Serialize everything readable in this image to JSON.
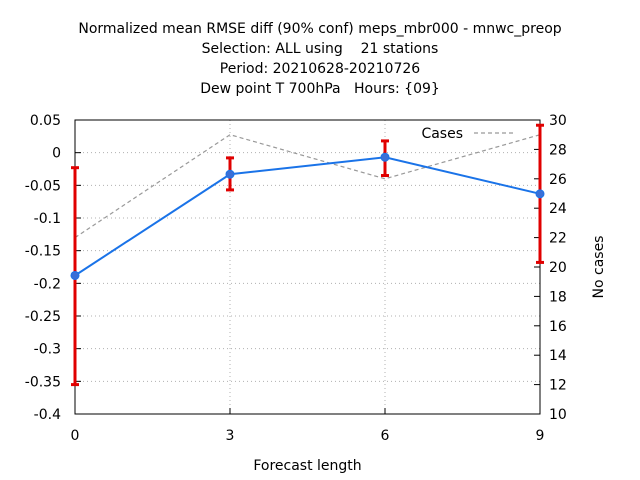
{
  "chart_data": {
    "type": "line",
    "title_lines": [
      "Normalized mean RMSE diff (90% conf) meps_mbr000 - mnwc_preop",
      "Selection: ALL using    21 stations",
      "Period: 20210628-20210726",
      "Dew point T 700hPa   Hours: {09}"
    ],
    "xlabel": "Forecast length",
    "ylabel": "",
    "y2label": "No cases",
    "x": [
      0,
      3,
      6,
      9
    ],
    "xticks": [
      "0",
      "3",
      "6",
      "9"
    ],
    "xlim": [
      0,
      9
    ],
    "ylim": [
      -0.4,
      0.05
    ],
    "yticks": [
      "0.05",
      "0",
      "-0.05",
      "-0.1",
      "-0.15",
      "-0.2",
      "-0.25",
      "-0.3",
      "-0.35",
      "-0.4"
    ],
    "y2lim": [
      10,
      30
    ],
    "y2ticks": [
      "30",
      "28",
      "26",
      "24",
      "22",
      "20",
      "18",
      "16",
      "14",
      "12",
      "10"
    ],
    "grid": true,
    "series": [
      {
        "name": "",
        "axis": "left",
        "color": "#1a73e8",
        "values": [
          -0.188,
          -0.033,
          -0.007,
          -0.063
        ],
        "err_low": [
          -0.355,
          -0.057,
          -0.035,
          -0.168
        ],
        "err_high": [
          -0.023,
          -0.008,
          0.018,
          0.042
        ],
        "err_color": "#e00000"
      },
      {
        "name": "Cases",
        "axis": "right",
        "color": "#999999",
        "dashed": true,
        "values": [
          22,
          29,
          26,
          29
        ]
      }
    ]
  }
}
